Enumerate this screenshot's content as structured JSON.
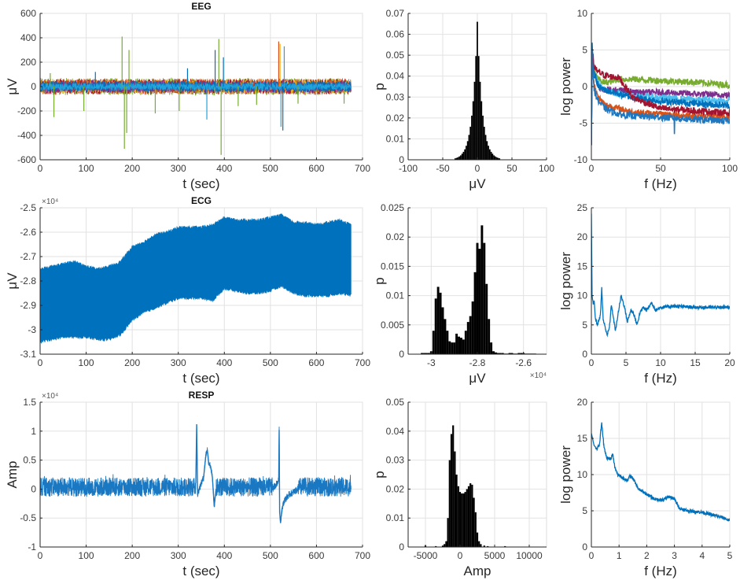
{
  "chart_data": [
    {
      "id": "eeg-time",
      "type": "line",
      "title": "EEG",
      "xlabel": "t (sec)",
      "ylabel": "μV",
      "xlim": [
        0,
        700
      ],
      "ylim": [
        -600,
        600
      ],
      "xticks": [
        0,
        100,
        200,
        300,
        400,
        500,
        600,
        700
      ],
      "yticks": [
        -600,
        -400,
        -200,
        0,
        200,
        400,
        600
      ],
      "grid": true,
      "t_end": 675,
      "channels": [
        {
          "color": "#77ac30",
          "range": [
            -70,
            70
          ]
        },
        {
          "color": "#d95319",
          "range": [
            -65,
            65
          ]
        },
        {
          "color": "#a2142f",
          "range": [
            -62,
            62
          ]
        },
        {
          "color": "#edb120",
          "range": [
            -55,
            55
          ]
        },
        {
          "color": "#7e2f8e",
          "range": [
            -50,
            50
          ]
        },
        {
          "color": "#0072bd",
          "range": [
            -45,
            45
          ]
        },
        {
          "color": "#21a3dc",
          "range": [
            -28,
            28
          ]
        }
      ],
      "spikes": [
        {
          "t": 22,
          "v": 110,
          "color": "#77ac30"
        },
        {
          "t": 30,
          "v": -250,
          "color": "#77ac30"
        },
        {
          "t": 95,
          "v": -200,
          "color": "#77ac30"
        },
        {
          "t": 120,
          "v": 120,
          "color": "#0072bd"
        },
        {
          "t": 178,
          "v": 410,
          "color": "#77ac30"
        },
        {
          "t": 183,
          "v": -510,
          "color": "#77ac30"
        },
        {
          "t": 188,
          "v": -380,
          "color": "#77ac30"
        },
        {
          "t": 193,
          "v": 300,
          "color": "#77ac30"
        },
        {
          "t": 250,
          "v": -220,
          "color": "#77ac30"
        },
        {
          "t": 302,
          "v": -200,
          "color": "#77ac30"
        },
        {
          "t": 320,
          "v": 150,
          "color": "#0072bd"
        },
        {
          "t": 362,
          "v": -270,
          "color": "#21a3dc"
        },
        {
          "t": 380,
          "v": 300,
          "color": "#0072bd"
        },
        {
          "t": 388,
          "v": 390,
          "color": "#77ac30"
        },
        {
          "t": 393,
          "v": -560,
          "color": "#77ac30"
        },
        {
          "t": 398,
          "v": 240,
          "color": "#0072bd"
        },
        {
          "t": 430,
          "v": -160,
          "color": "#77ac30"
        },
        {
          "t": 470,
          "v": -150,
          "color": "#77ac30"
        },
        {
          "t": 518,
          "v": 370,
          "color": "#d95319"
        },
        {
          "t": 521,
          "v": 350,
          "color": "#edb120"
        },
        {
          "t": 523,
          "v": -330,
          "color": "#21a3dc"
        },
        {
          "t": 527,
          "v": -360,
          "color": "#0072bd"
        },
        {
          "t": 530,
          "v": 330,
          "color": "#21a3dc"
        },
        {
          "t": 560,
          "v": -140,
          "color": "#77ac30"
        },
        {
          "t": 660,
          "v": -140,
          "color": "#77ac30"
        }
      ]
    },
    {
      "id": "eeg-hist",
      "type": "bar",
      "xlabel": "μV",
      "ylabel": "p",
      "xlim": [
        -100,
        100
      ],
      "ylim": [
        0,
        0.07
      ],
      "xticks": [
        -100,
        -50,
        0,
        50,
        100
      ],
      "yticks": [
        0,
        0.01,
        0.02,
        0.03,
        0.04,
        0.05,
        0.06,
        0.07
      ],
      "grid": true,
      "bin_width": 2,
      "color": "#000000",
      "x": [
        -32,
        -30,
        -28,
        -26,
        -24,
        -22,
        -20,
        -18,
        -16,
        -14,
        -12,
        -10,
        -8,
        -6,
        -4,
        -2,
        0,
        2,
        4,
        6,
        8,
        10,
        12,
        14,
        16,
        18,
        20,
        22,
        24,
        26,
        28,
        30,
        32
      ],
      "p": [
        0.0007,
        0.0009,
        0.0012,
        0.0016,
        0.0021,
        0.0029,
        0.0038,
        0.005,
        0.0067,
        0.0089,
        0.0119,
        0.0158,
        0.0211,
        0.028,
        0.0373,
        0.0496,
        0.066,
        0.0496,
        0.0373,
        0.028,
        0.0211,
        0.0158,
        0.0119,
        0.0089,
        0.0067,
        0.005,
        0.0038,
        0.0029,
        0.0021,
        0.0016,
        0.0012,
        0.0009,
        0.0007
      ]
    },
    {
      "id": "eeg-psd",
      "type": "line",
      "xlabel": "f (Hz)",
      "ylabel": "log power",
      "xlim": [
        0,
        100
      ],
      "ylim": [
        -10,
        10
      ],
      "xticks": [
        0,
        50,
        100
      ],
      "yticks": [
        -10,
        -5,
        0,
        5,
        10
      ],
      "grid": true,
      "f": [
        0,
        0.5,
        2,
        5,
        10,
        20,
        30,
        50,
        75,
        100
      ],
      "series": [
        {
          "color": "#77ac30",
          "values": [
            -8,
            4,
            2,
            1,
            0.5,
            1,
            1,
            0.8,
            0.6,
            0.2
          ]
        },
        {
          "color": "#7e2f8e",
          "values": [
            -8,
            4,
            1.5,
            0,
            -0.5,
            -0.5,
            -0.8,
            -0.8,
            -1.0,
            -1.2
          ]
        },
        {
          "color": "#4dbeee",
          "values": [
            -8,
            5,
            2,
            0.5,
            -0.5,
            -1,
            -1.3,
            -1.5,
            -1.8,
            -2.0
          ]
        },
        {
          "color": "#0072bd",
          "values": [
            -8,
            6,
            2,
            0,
            -0.5,
            -1.0,
            -1.5,
            -2,
            -2.3,
            -2.6
          ]
        },
        {
          "color": "#d95319",
          "values": [
            -8,
            4,
            0,
            -1.5,
            -2.5,
            -3,
            -3.5,
            -3.8,
            -4,
            -4.2
          ]
        },
        {
          "color": "#a2142f",
          "values": [
            -8,
            5,
            2.5,
            2,
            1.5,
            1.2,
            -1.5,
            -3,
            -3.3,
            -3.6
          ]
        },
        {
          "color": "#1f77c0",
          "values": [
            -8,
            5,
            -0.5,
            -2,
            -3,
            -3.8,
            -4,
            -4.2,
            -4.5,
            -4.7
          ]
        }
      ],
      "line_noise_dip": {
        "f": 60,
        "value": -6.5
      }
    },
    {
      "id": "ecg-time",
      "type": "area",
      "title": "ECG",
      "xlabel": "t (sec)",
      "ylabel": "μV",
      "exponent_label": "×10⁴",
      "xlim": [
        0,
        700
      ],
      "ylim": [
        -3.1,
        -2.5
      ],
      "xticks": [
        0,
        100,
        200,
        300,
        400,
        500,
        600,
        700
      ],
      "yticks": [
        -3.1,
        -3,
        -2.9,
        -2.8,
        -2.7,
        -2.6,
        -2.5
      ],
      "grid": true,
      "color": "#0072bd",
      "t": [
        0,
        25,
        50,
        75,
        100,
        125,
        150,
        175,
        200,
        225,
        250,
        275,
        300,
        325,
        350,
        375,
        400,
        425,
        450,
        475,
        500,
        525,
        550,
        575,
        600,
        625,
        650,
        675
      ],
      "upper": [
        -2.75,
        -2.74,
        -2.73,
        -2.72,
        -2.74,
        -2.75,
        -2.74,
        -2.72,
        -2.66,
        -2.64,
        -2.61,
        -2.6,
        -2.58,
        -2.58,
        -2.58,
        -2.57,
        -2.54,
        -2.55,
        -2.55,
        -2.55,
        -2.54,
        -2.53,
        -2.56,
        -2.56,
        -2.57,
        -2.56,
        -2.55,
        -2.57
      ],
      "lower": [
        -3.05,
        -3.04,
        -3.03,
        -3.03,
        -3.03,
        -3.04,
        -3.04,
        -3.02,
        -2.96,
        -2.93,
        -2.91,
        -2.89,
        -2.87,
        -2.87,
        -2.87,
        -2.88,
        -2.83,
        -2.84,
        -2.85,
        -2.85,
        -2.84,
        -2.82,
        -2.85,
        -2.86,
        -2.86,
        -2.86,
        -2.85,
        -2.86
      ]
    },
    {
      "id": "ecg-hist",
      "type": "bar",
      "xlabel": "μV",
      "ylabel": "p",
      "exponent_label": "×10⁴",
      "xlim": [
        -3.1,
        -2.5
      ],
      "ylim": [
        0,
        0.025
      ],
      "xticks": [
        -3,
        -2.8,
        -2.6
      ],
      "yticks": [
        0,
        0.005,
        0.01,
        0.015,
        0.02,
        0.025
      ],
      "grid": true,
      "bin_width": 0.01,
      "color": "#000000",
      "x": [
        -3.04,
        -3.03,
        -3.02,
        -3.01,
        -3.0,
        -2.99,
        -2.98,
        -2.97,
        -2.96,
        -2.95,
        -2.94,
        -2.93,
        -2.92,
        -2.91,
        -2.9,
        -2.89,
        -2.88,
        -2.87,
        -2.86,
        -2.85,
        -2.84,
        -2.83,
        -2.82,
        -2.81,
        -2.8,
        -2.79,
        -2.78,
        -2.77,
        -2.76,
        -2.75,
        -2.74,
        -2.73,
        -2.72,
        -2.71,
        -2.7,
        -2.69,
        -2.68,
        -2.67,
        -2.66,
        -2.65,
        -2.64,
        -2.63,
        -2.62,
        -2.61,
        -2.6,
        -2.59,
        -2.58,
        -2.57,
        -2.56,
        -2.55
      ],
      "p": [
        0.0002,
        0.0002,
        0.0002,
        0.0002,
        0.0005,
        0.004,
        0.0095,
        0.0115,
        0.0105,
        0.008,
        0.006,
        0.004,
        0.0022,
        0.002,
        0.002,
        0.0035,
        0.003,
        0.0028,
        0.0025,
        0.004,
        0.0055,
        0.0065,
        0.009,
        0.014,
        0.019,
        0.018,
        0.022,
        0.019,
        0.012,
        0.006,
        0.002,
        0.0005,
        0.0003,
        0.0002,
        0.0002,
        0.0002,
        0.0001,
        0.0001,
        0.0002,
        0.0002,
        0.0001,
        0.0001,
        0.0002,
        0.0002,
        0.0002,
        0.0001,
        0.0001,
        0.0001,
        0.0001,
        0.0001
      ]
    },
    {
      "id": "ecg-psd",
      "type": "line",
      "xlabel": "f (Hz)",
      "ylabel": "log power",
      "xlim": [
        0,
        20
      ],
      "ylim": [
        0,
        25
      ],
      "xticks": [
        0,
        5,
        10,
        15,
        20
      ],
      "yticks": [
        0,
        5,
        10,
        15,
        20,
        25
      ],
      "grid": true,
      "color": "#0072bd",
      "f": [
        0,
        0.1,
        0.3,
        0.4,
        0.6,
        0.9,
        1.1,
        1.3,
        1.5,
        1.7,
        2.0,
        2.3,
        2.6,
        2.9,
        3.2,
        3.5,
        3.8,
        4.3,
        4.8,
        5.2,
        5.7,
        6.1,
        6.6,
        7.0,
        7.5,
        8,
        8.7,
        9.3,
        10,
        12,
        15,
        18,
        20
      ],
      "values": [
        24,
        10,
        8.5,
        9,
        6,
        5,
        6,
        6.5,
        11.2,
        6,
        4.5,
        3.3,
        4.5,
        8.5,
        6,
        4,
        6.5,
        10,
        8,
        5.5,
        7.5,
        7,
        5,
        7,
        8,
        7.5,
        8.8,
        7.5,
        8,
        8.2,
        8,
        8,
        8
      ]
    },
    {
      "id": "resp-time",
      "type": "line",
      "title": "RESP",
      "xlabel": "t (sec)",
      "ylabel": "Amp",
      "exponent_label": "×10⁴",
      "xlim": [
        0,
        700
      ],
      "ylim": [
        -1,
        1.5
      ],
      "xticks": [
        0,
        100,
        200,
        300,
        400,
        500,
        600,
        700
      ],
      "yticks": [
        -1,
        -0.5,
        0,
        0.5,
        1,
        1.5
      ],
      "grid": true,
      "color": "#1a78c2",
      "t_end": 675,
      "baseline_range": [
        -0.13,
        0.2
      ],
      "events": [
        {
          "t": [
            338,
            340,
            342,
            345,
            355,
            360,
            363,
            366,
            370,
            374,
            378,
            382
          ],
          "v": [
            0.1,
            1.12,
            -0.1,
            0.0,
            0.2,
            0.6,
            0.68,
            0.45,
            0.4,
            0.2,
            -0.3,
            0.0
          ]
        },
        {
          "t": [
            505,
            518,
            519,
            520,
            522,
            525,
            530,
            540,
            560
          ],
          "v": [
            0.0,
            0.15,
            1.02,
            -0.4,
            -0.58,
            -0.35,
            -0.2,
            -0.1,
            0.0
          ]
        }
      ]
    },
    {
      "id": "resp-hist",
      "type": "bar",
      "xlabel": "Amp",
      "ylabel": "p",
      "xlim": [
        -7500,
        12500
      ],
      "ylim": [
        0,
        0.05
      ],
      "xticks": [
        -5000,
        0,
        5000,
        10000
      ],
      "yticks": [
        0,
        0.01,
        0.02,
        0.03,
        0.04,
        0.05
      ],
      "grid": true,
      "bin_width": 250,
      "color": "#000000",
      "x": [
        -5000,
        -3500,
        -2500,
        -2250,
        -2000,
        -1750,
        -1500,
        -1250,
        -1000,
        -750,
        -500,
        -250,
        0,
        250,
        500,
        750,
        1000,
        1250,
        1500,
        1750,
        2000,
        2250,
        2500,
        2750,
        3000,
        3500,
        4000,
        6500
      ],
      "p": [
        0.0005,
        0.0003,
        0.0005,
        0.001,
        0.002,
        0.01,
        0.03,
        0.039,
        0.042,
        0.033,
        0.025,
        0.021,
        0.019,
        0.0185,
        0.0185,
        0.019,
        0.02,
        0.021,
        0.022,
        0.0215,
        0.017,
        0.012,
        0.005,
        0.002,
        0.001,
        0.0005,
        0.0003,
        0.0003
      ]
    },
    {
      "id": "resp-psd",
      "type": "line",
      "xlabel": "f (Hz)",
      "ylabel": "log power",
      "xlim": [
        0,
        5
      ],
      "ylim": [
        0,
        20
      ],
      "xticks": [
        0,
        1,
        2,
        3,
        4,
        5
      ],
      "yticks": [
        0,
        5,
        10,
        15,
        20
      ],
      "grid": true,
      "color": "#0072bd",
      "f": [
        0,
        0.1,
        0.2,
        0.3,
        0.37,
        0.45,
        0.55,
        0.7,
        0.77,
        0.85,
        0.95,
        1.1,
        1.3,
        1.4,
        1.5,
        1.7,
        2.0,
        2.3,
        2.6,
        2.8,
        3.0,
        3.2,
        3.5,
        4.0,
        4.5,
        4.8,
        5.0
      ],
      "values": [
        15.7,
        14,
        13.6,
        14.2,
        17.2,
        14,
        12.3,
        12.2,
        12.8,
        11,
        10,
        9.6,
        9.2,
        9.8,
        9.5,
        8,
        7.3,
        6.6,
        6.5,
        7,
        6.6,
        5.3,
        5,
        4.8,
        4.3,
        4,
        3.6
      ]
    }
  ]
}
